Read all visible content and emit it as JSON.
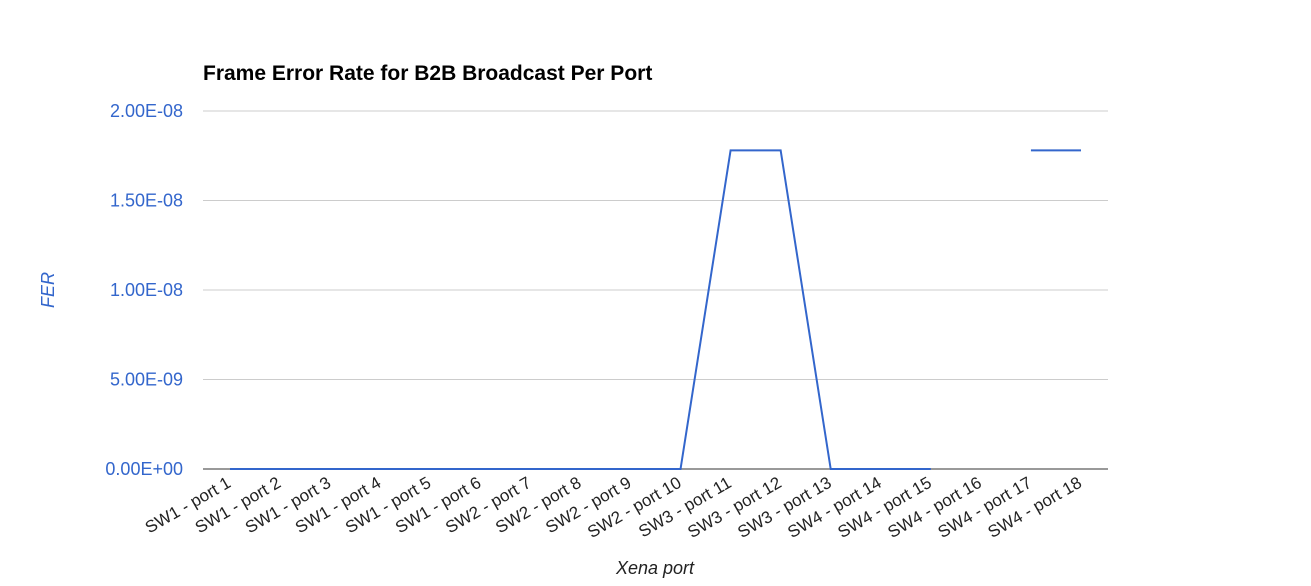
{
  "chart_data": {
    "type": "line",
    "title": "Frame Error Rate for B2B Broadcast Per Port",
    "xlabel": "Xena port",
    "ylabel": "FER",
    "categories": [
      "SW1 - port 1",
      "SW1 - port 2",
      "SW1 - port 3",
      "SW1 - port 4",
      "SW1 - port 5",
      "SW1 - port 6",
      "SW2 - port 7",
      "SW2 - port 8",
      "SW2 - port 9",
      "SW2 - port 10",
      "SW3 - port 11",
      "SW3 - port 12",
      "SW3 - port 13",
      "SW4 - port 14",
      "SW4 - port 15",
      "SW4 - port 16",
      "SW4 - port 17",
      "SW4 - port 18"
    ],
    "series": [
      {
        "values": [
          0,
          0,
          0,
          0,
          0,
          0,
          0,
          0,
          0,
          0,
          1.78e-08,
          1.78e-08,
          0,
          0,
          0,
          null,
          1.78e-08,
          1.78e-08
        ]
      }
    ],
    "ylim": [
      0,
      2e-08
    ],
    "yticks": [
      "0.00E+00",
      "5.00E-09",
      "1.00E-08",
      "1.50E-08",
      "2.00E-08"
    ],
    "ytick_values": [
      0,
      5e-09,
      1e-08,
      1.5e-08,
      2e-08
    ],
    "grid": true,
    "legend": "none",
    "colors": {
      "series": "#3366cc",
      "title": "#000000",
      "axis_text": "#3366cc"
    }
  }
}
